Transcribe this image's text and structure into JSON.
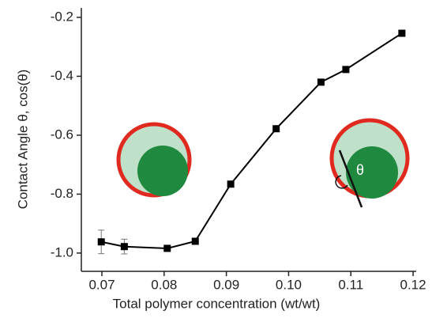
{
  "chart_data": {
    "type": "line",
    "x_label": "Total polymer concentration (wt/wt)",
    "y_label": "Contact Angle θ, cos(θ)",
    "annotation": "θ",
    "x": [
      0.0699,
      0.0736,
      0.0805,
      0.085,
      0.0907,
      0.098,
      0.1052,
      0.1092,
      0.1182
    ],
    "series": [
      {
        "color": "#000000",
        "values": [
          -0.962,
          -0.978,
          -0.984,
          -0.96,
          -0.766,
          -0.578,
          -0.42,
          -0.377,
          -0.254
        ],
        "errors": [
          0.04,
          0.025,
          0.01,
          null,
          null,
          null,
          null,
          null,
          null
        ]
      }
    ],
    "xlim": [
      0.0667,
      0.1205
    ],
    "ylim": [
      -1.062,
      -0.168
    ],
    "xticks": [
      0.07,
      0.08,
      0.09,
      {
        "value": 0.1,
        "label": "0.10"
      },
      0.11,
      {
        "value": 0.12,
        "label": "0.12"
      }
    ],
    "yticks": [
      -0.2,
      -0.4,
      -0.6,
      -0.8,
      {
        "value": -1,
        "label": "-1.0"
      }
    ]
  }
}
